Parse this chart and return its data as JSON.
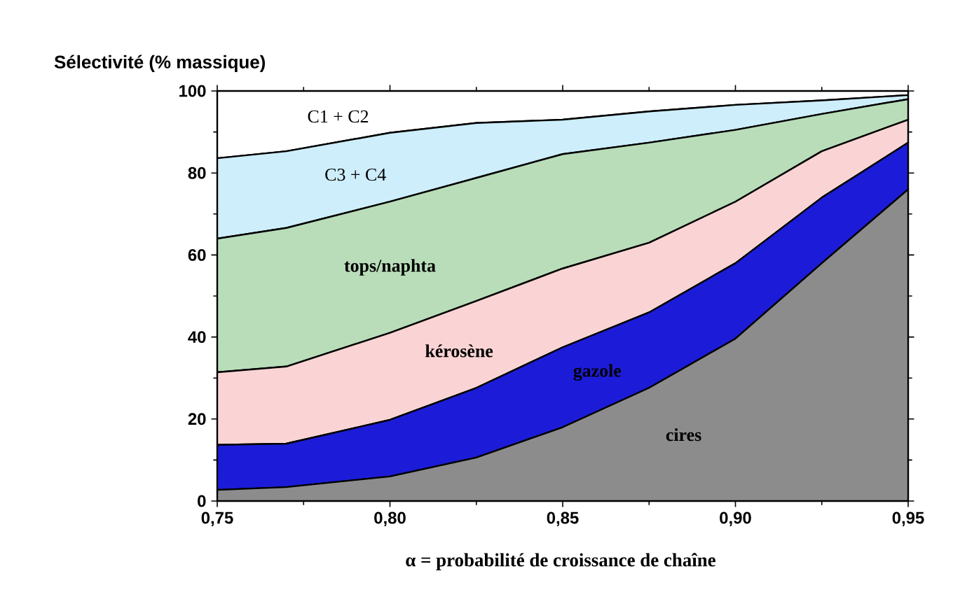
{
  "chart_data": {
    "type": "area",
    "stacked": true,
    "ylabel": "Sélectivité (% massique)",
    "xlabel": "α =  probabilité de croissance de chaîne",
    "x": [
      0.75,
      0.77,
      0.8,
      0.825,
      0.85,
      0.875,
      0.9,
      0.925,
      0.95
    ],
    "series": [
      {
        "name": "cires",
        "color": "#8c8c8c",
        "values": [
          2.7,
          3.4,
          6,
          10.6,
          18,
          27.6,
          39.6,
          58,
          76
        ]
      },
      {
        "name": "gazole",
        "color": "#1c1cd8",
        "values": [
          11,
          10.6,
          13.8,
          17,
          19.5,
          18.4,
          18.4,
          16,
          11.4
        ]
      },
      {
        "name": "kérosène",
        "color": "#fad4d4",
        "values": [
          17.7,
          18.8,
          21.2,
          21.2,
          19.2,
          17,
          15,
          11.3,
          5.6
        ]
      },
      {
        "name": "tops/naphta",
        "color": "#b9ddb9",
        "values": [
          32.6,
          33.8,
          32,
          30,
          27.9,
          24.4,
          17.5,
          9.1,
          5
        ]
      },
      {
        "name": "C3 + C4",
        "color": "#cdeefa",
        "values": [
          19.6,
          18.7,
          16.8,
          13.4,
          8.4,
          7.6,
          6.1,
          3.3,
          1
        ]
      },
      {
        "name": "C1 + C2",
        "color": "#ffffff",
        "values": [
          16.4,
          14.7,
          10.2,
          7.8,
          7,
          5,
          3.4,
          2.3,
          1
        ]
      }
    ],
    "xlim": [
      0.75,
      0.95
    ],
    "ylim": [
      0,
      100
    ],
    "xticks": [
      {
        "value": 0.75,
        "label": "0,75"
      },
      {
        "value": 0.8,
        "label": "0,80"
      },
      {
        "value": 0.85,
        "label": "0,85"
      },
      {
        "value": 0.9,
        "label": "0,90"
      },
      {
        "value": 0.95,
        "label": "0,95"
      }
    ],
    "yticks": [
      0,
      20,
      40,
      60,
      80,
      100
    ]
  }
}
